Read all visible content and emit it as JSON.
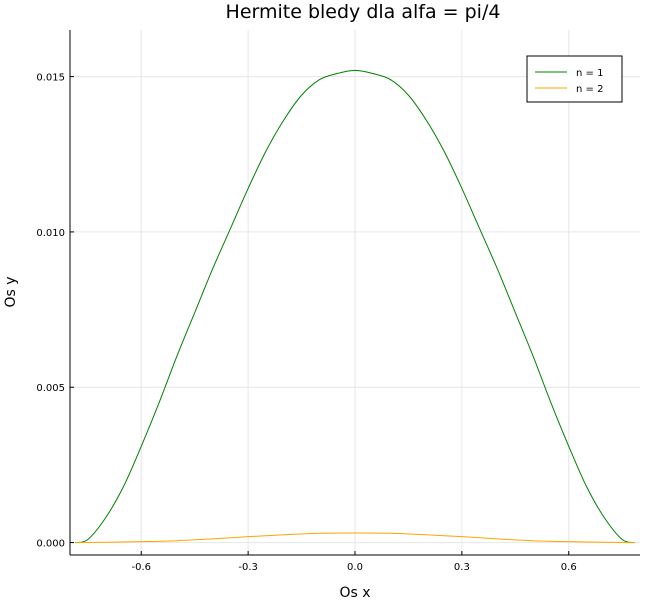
{
  "chart_data": {
    "type": "line",
    "title": "Hermite bledy dla alfa = pi/4",
    "xlabel": "Os x",
    "ylabel": "Os y",
    "xlim": [
      -0.8,
      0.8
    ],
    "ylim": [
      -0.0004,
      0.0165
    ],
    "xticks": [
      -0.6,
      -0.3,
      0.0,
      0.3,
      0.6
    ],
    "xtick_labels": [
      "-0.6",
      "-0.3",
      "0.0",
      "0.3",
      "0.6"
    ],
    "yticks": [
      0.0,
      0.005,
      0.01,
      0.015
    ],
    "ytick_labels": [
      "0.000",
      "0.005",
      "0.010",
      "0.015"
    ],
    "grid": true,
    "legend_position": "top-right",
    "series": [
      {
        "name": "n = 1",
        "color": "#008000",
        "x": [
          -0.785,
          -0.75,
          -0.7,
          -0.65,
          -0.6,
          -0.55,
          -0.5,
          -0.45,
          -0.4,
          -0.35,
          -0.3,
          -0.25,
          -0.2,
          -0.15,
          -0.1,
          -0.05,
          0.0,
          0.05,
          0.1,
          0.15,
          0.2,
          0.25,
          0.3,
          0.35,
          0.4,
          0.45,
          0.5,
          0.55,
          0.6,
          0.65,
          0.7,
          0.75,
          0.785
        ],
        "y": [
          0.0,
          0.0001,
          0.0008,
          0.0018,
          0.0031,
          0.0045,
          0.006,
          0.0074,
          0.0088,
          0.0101,
          0.0114,
          0.0126,
          0.0136,
          0.0144,
          0.0149,
          0.0151,
          0.0152,
          0.0151,
          0.0149,
          0.0144,
          0.0136,
          0.0126,
          0.0114,
          0.0101,
          0.0088,
          0.0074,
          0.006,
          0.0045,
          0.0031,
          0.0018,
          0.0008,
          0.0001,
          0.0
        ]
      },
      {
        "name": "n = 2",
        "color": "#ffa500",
        "x": [
          -0.785,
          -0.7,
          -0.6,
          -0.5,
          -0.4,
          -0.3,
          -0.2,
          -0.1,
          0.0,
          0.1,
          0.2,
          0.3,
          0.4,
          0.5,
          0.6,
          0.7,
          0.785
        ],
        "y": [
          0.0,
          1e-05,
          3e-05,
          6e-05,
          0.00012,
          0.00019,
          0.00025,
          0.0003,
          0.00031,
          0.0003,
          0.00025,
          0.00019,
          0.00012,
          6e-05,
          3e-05,
          1e-05,
          0.0
        ]
      }
    ]
  }
}
